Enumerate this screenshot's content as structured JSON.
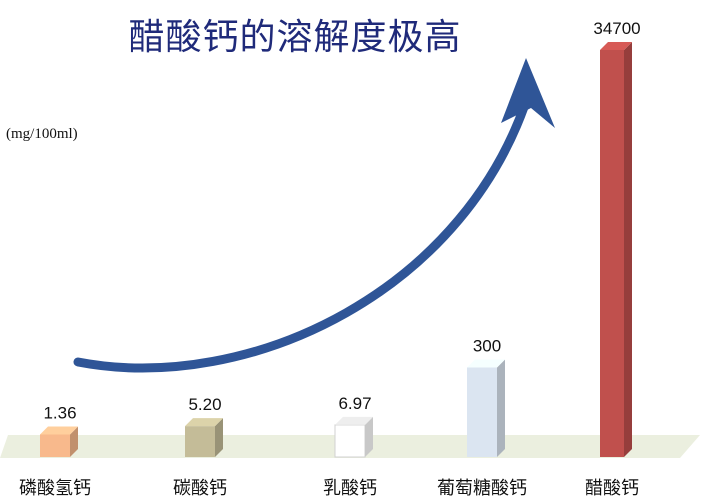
{
  "chart_data": {
    "type": "bar",
    "title": "醋酸钙的溶解度极高",
    "ylabel": "(mg/100ml)",
    "categories": [
      "磷酸氢钙",
      "碳酸钙",
      "乳酸钙",
      "葡萄糖酸钙",
      "醋酸钙"
    ],
    "value_labels": [
      "1.36",
      "5.20",
      "6.97",
      "300",
      "34700"
    ],
    "values": [
      1.36,
      5.2,
      6.97,
      300,
      34700
    ],
    "bar_colors": [
      "#f8b98c",
      "#c4bc98",
      "#ffffff",
      "#dbe5f1",
      "#c0504d"
    ],
    "arrow_color": "#2f5597",
    "floor_color": "#ebefdf"
  }
}
